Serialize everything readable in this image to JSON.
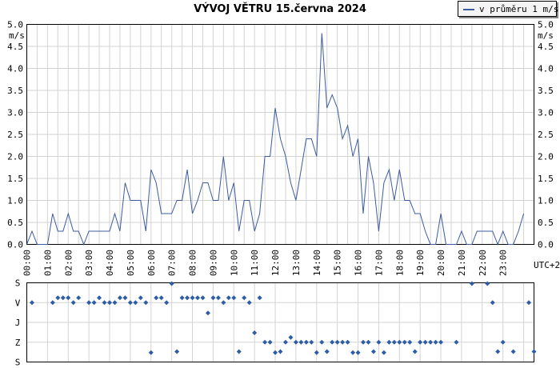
{
  "title": "VÝVOJ VĚTRU  15.června 2024",
  "legend": {
    "label": "v průměru 1 m/s"
  },
  "colors": {
    "series": "#3c5ba0",
    "grid": "#d3d3d3",
    "direction_marker": "#2e5da8"
  },
  "chart_data": [
    {
      "type": "line",
      "ylabel": "m/s",
      "xlabel": "UTC+2",
      "ylim": [
        0,
        5
      ],
      "yticks": [
        "0.0",
        "0.5",
        "1.0",
        "1.5",
        "2.0",
        "2.5",
        "3.0",
        "3.5",
        "4.0",
        "4.5",
        "5.0"
      ],
      "xticks": [
        "00:00",
        "01:00",
        "02:00",
        "03:00",
        "04:00",
        "05:00",
        "06:00",
        "07:00",
        "08:00",
        "09:00",
        "10:00",
        "11:00",
        "12:00",
        "13:00",
        "14:00",
        "15:00",
        "16:00",
        "17:00",
        "18:00",
        "19:00",
        "20:00",
        "21:00",
        "22:00",
        "23:00"
      ],
      "grid": true,
      "legend_position": "top-right",
      "series": [
        {
          "name": "v průměru 1 m/s",
          "values": [
            0.0,
            0.3,
            0.0,
            0.0,
            0.0,
            0.7,
            0.3,
            0.3,
            0.7,
            0.3,
            0.3,
            0.0,
            0.3,
            0.3,
            0.3,
            0.3,
            0.3,
            0.7,
            0.3,
            1.4,
            1.0,
            1.0,
            1.0,
            0.3,
            1.7,
            1.4,
            0.7,
            0.7,
            0.7,
            1.0,
            1.0,
            1.7,
            0.7,
            1.0,
            1.4,
            1.4,
            1.0,
            1.0,
            2.0,
            1.0,
            1.4,
            0.3,
            1.0,
            1.0,
            0.3,
            0.7,
            2.0,
            2.0,
            3.1,
            2.4,
            2.0,
            1.4,
            1.0,
            1.7,
            2.4,
            2.4,
            2.0,
            4.8,
            3.1,
            3.4,
            3.1,
            2.4,
            2.7,
            2.0,
            2.4,
            0.7,
            2.0,
            1.4,
            0.3,
            1.4,
            1.7,
            1.0,
            1.7,
            1.0,
            1.0,
            0.7,
            0.7,
            0.3,
            0.0,
            0.0,
            0.7,
            0.0,
            0.0,
            0.0,
            0.3,
            0.0,
            0.0,
            0.3,
            0.3,
            0.3,
            0.3,
            0.0,
            0.3,
            0.0,
            0.0,
            0.3,
            0.7
          ]
        }
      ]
    },
    {
      "type": "scatter",
      "ylabels": [
        "S",
        "V",
        "J",
        "Z",
        "S"
      ],
      "x_range_hours": [
        0,
        24
      ],
      "grid": true,
      "points": [
        {
          "h": 0.25,
          "d": "V"
        },
        {
          "h": 1.25,
          "d": "V"
        },
        {
          "h": 1.5,
          "d": "V-"
        },
        {
          "h": 1.75,
          "d": "V-"
        },
        {
          "h": 2.0,
          "d": "V-"
        },
        {
          "h": 2.25,
          "d": "V"
        },
        {
          "h": 2.5,
          "d": "V-"
        },
        {
          "h": 3.0,
          "d": "V"
        },
        {
          "h": 3.25,
          "d": "V"
        },
        {
          "h": 3.5,
          "d": "V-"
        },
        {
          "h": 3.75,
          "d": "V"
        },
        {
          "h": 4.0,
          "d": "V"
        },
        {
          "h": 4.25,
          "d": "V"
        },
        {
          "h": 4.5,
          "d": "V-"
        },
        {
          "h": 4.75,
          "d": "V-"
        },
        {
          "h": 5.0,
          "d": "V"
        },
        {
          "h": 5.25,
          "d": "V"
        },
        {
          "h": 5.5,
          "d": "V-"
        },
        {
          "h": 5.75,
          "d": "V"
        },
        {
          "h": 6.0,
          "d": "Z+"
        },
        {
          "h": 6.25,
          "d": "V-"
        },
        {
          "h": 6.5,
          "d": "V-"
        },
        {
          "h": 6.75,
          "d": "V"
        },
        {
          "h": 7.0,
          "d": "S"
        },
        {
          "h": 7.25,
          "d": "S2"
        },
        {
          "h": 7.5,
          "d": "V-"
        },
        {
          "h": 7.75,
          "d": "V-"
        },
        {
          "h": 8.0,
          "d": "V-"
        },
        {
          "h": 8.25,
          "d": "V-"
        },
        {
          "h": 8.5,
          "d": "V-"
        },
        {
          "h": 8.75,
          "d": "V+"
        },
        {
          "h": 9.0,
          "d": "V-"
        },
        {
          "h": 9.25,
          "d": "V-"
        },
        {
          "h": 9.5,
          "d": "V"
        },
        {
          "h": 9.75,
          "d": "V-"
        },
        {
          "h": 10.0,
          "d": "V-"
        },
        {
          "h": 10.25,
          "d": "S2"
        },
        {
          "h": 10.5,
          "d": "V-"
        },
        {
          "h": 10.75,
          "d": "V"
        },
        {
          "h": 11.0,
          "d": "J+"
        },
        {
          "h": 11.25,
          "d": "V-"
        },
        {
          "h": 11.5,
          "d": "Z"
        },
        {
          "h": 11.75,
          "d": "Z"
        },
        {
          "h": 12.0,
          "d": "Z+"
        },
        {
          "h": 12.25,
          "d": "S2"
        },
        {
          "h": 12.5,
          "d": "Z"
        },
        {
          "h": 12.75,
          "d": "Z-"
        },
        {
          "h": 13.0,
          "d": "Z"
        },
        {
          "h": 13.25,
          "d": "Z"
        },
        {
          "h": 13.5,
          "d": "Z"
        },
        {
          "h": 13.75,
          "d": "Z"
        },
        {
          "h": 14.0,
          "d": "Z+"
        },
        {
          "h": 14.25,
          "d": "Z"
        },
        {
          "h": 14.5,
          "d": "S2"
        },
        {
          "h": 14.75,
          "d": "Z"
        },
        {
          "h": 15.0,
          "d": "Z"
        },
        {
          "h": 15.25,
          "d": "Z"
        },
        {
          "h": 15.5,
          "d": "Z"
        },
        {
          "h": 15.75,
          "d": "Z+"
        },
        {
          "h": 16.0,
          "d": "Z+"
        },
        {
          "h": 16.25,
          "d": "Z"
        },
        {
          "h": 16.5,
          "d": "Z"
        },
        {
          "h": 16.75,
          "d": "S2"
        },
        {
          "h": 17.0,
          "d": "Z"
        },
        {
          "h": 17.25,
          "d": "Z+"
        },
        {
          "h": 17.5,
          "d": "Z"
        },
        {
          "h": 17.75,
          "d": "Z"
        },
        {
          "h": 18.0,
          "d": "Z"
        },
        {
          "h": 18.25,
          "d": "Z"
        },
        {
          "h": 18.5,
          "d": "Z"
        },
        {
          "h": 18.75,
          "d": "S2"
        },
        {
          "h": 19.0,
          "d": "Z"
        },
        {
          "h": 19.25,
          "d": "Z"
        },
        {
          "h": 19.5,
          "d": "Z"
        },
        {
          "h": 19.75,
          "d": "Z"
        },
        {
          "h": 20.0,
          "d": "Z"
        },
        {
          "h": 20.75,
          "d": "Z"
        },
        {
          "h": 21.5,
          "d": "S"
        },
        {
          "h": 22.25,
          "d": "S"
        },
        {
          "h": 22.5,
          "d": "V"
        },
        {
          "h": 22.75,
          "d": "S2"
        },
        {
          "h": 23.0,
          "d": "Z"
        },
        {
          "h": 23.5,
          "d": "S2"
        },
        {
          "h": 24.25,
          "d": "V"
        },
        {
          "h": 24.5,
          "d": "S2"
        }
      ]
    }
  ]
}
